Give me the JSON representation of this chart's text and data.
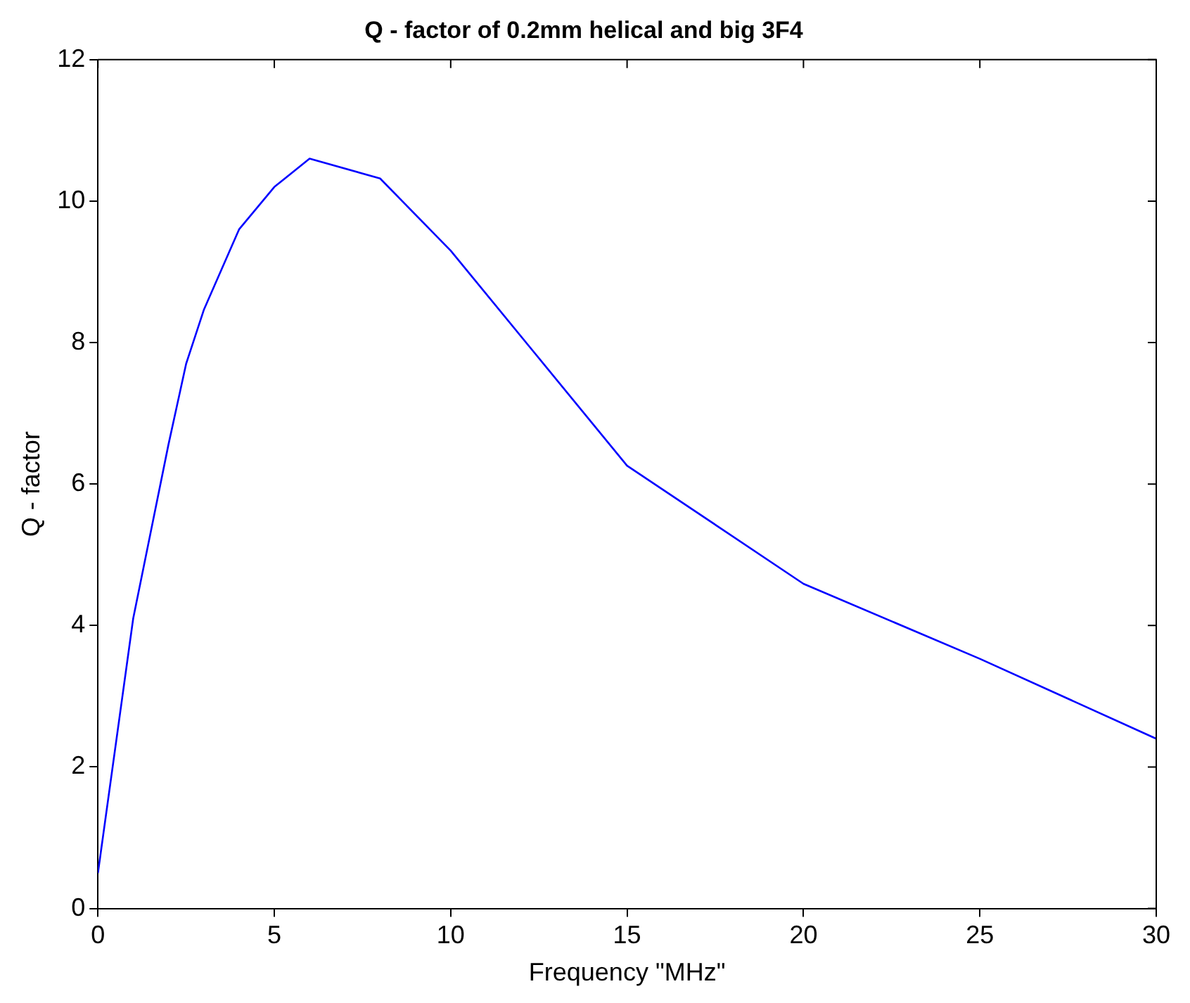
{
  "chart_data": {
    "type": "line",
    "title": "Q - factor of 0.2mm helical and big 3F4",
    "xlabel": "Frequency \"MHz\"",
    "ylabel": "Q - factor",
    "xlim": [
      0,
      30
    ],
    "xticks": [
      0,
      5,
      10,
      15,
      20,
      25,
      30
    ],
    "ylim": [
      0,
      12
    ],
    "yticks": [
      0,
      2,
      4,
      6,
      8,
      10,
      12
    ],
    "grid": false,
    "legend": false,
    "marker": "none",
    "line_style": "solid",
    "series": [
      {
        "color": "#0000ff",
        "x": [
          0,
          1,
          2,
          2.5,
          3,
          4,
          5,
          6,
          8,
          10,
          15,
          20,
          25,
          30
        ],
        "values": [
          0.5,
          4.1,
          6.56,
          7.7,
          8.46,
          9.6,
          10.2,
          10.6,
          10.32,
          9.3,
          6.26,
          4.59,
          3.53,
          2.4
        ]
      }
    ]
  }
}
